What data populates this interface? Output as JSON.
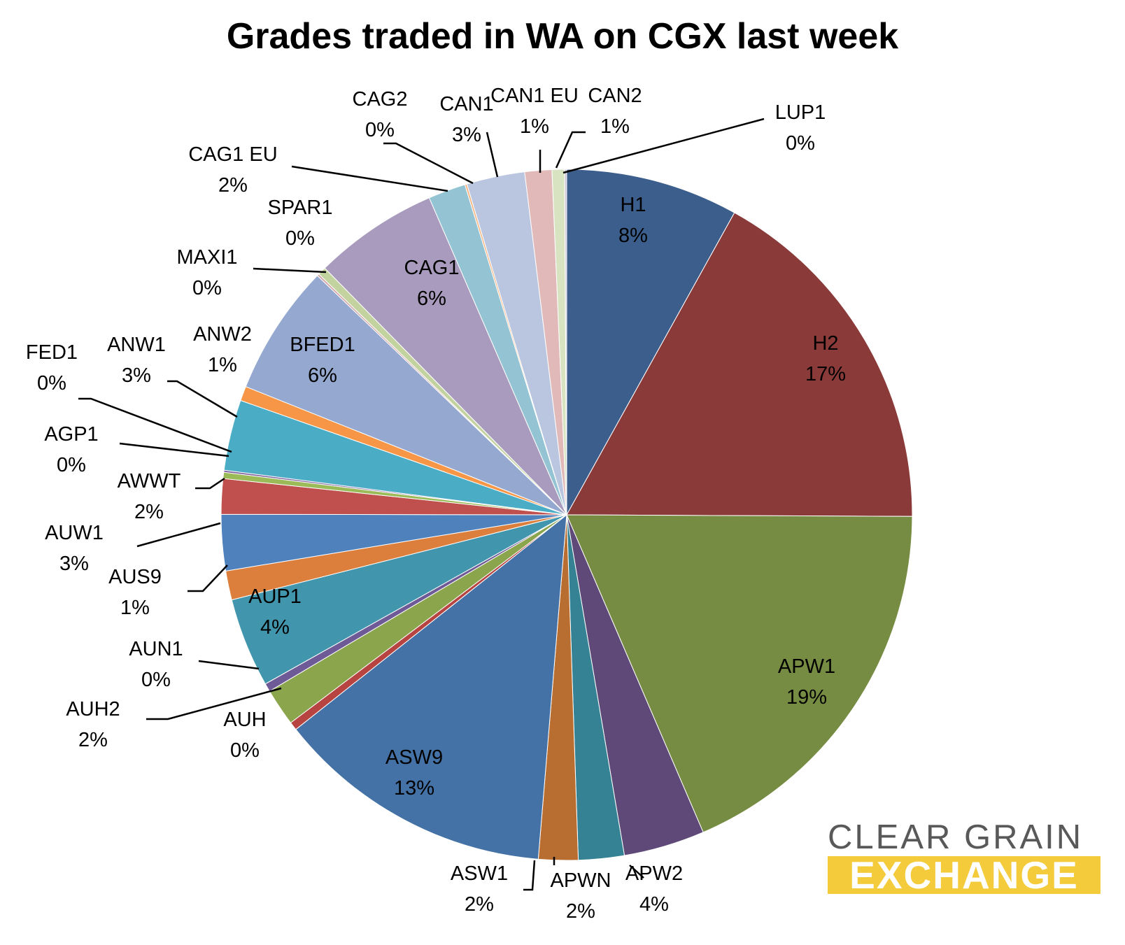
{
  "chart_data": {
    "type": "pie",
    "title": "Grades traded in WA on CGX last week",
    "slices": [
      {
        "name": "H1",
        "label": "8%",
        "value": 8.3,
        "color": "#3b5e8c"
      },
      {
        "name": "H2",
        "label": "17%",
        "value": 17.5,
        "color": "#8b3a3a"
      },
      {
        "name": "APW1",
        "label": "19%",
        "value": 19.0,
        "color": "#768c42"
      },
      {
        "name": "APW2",
        "label": "4%",
        "value": 3.9,
        "color": "#5e4978"
      },
      {
        "name": "APWN",
        "label": "2%",
        "value": 2.2,
        "color": "#358294"
      },
      {
        "name": "ASW1",
        "label": "2%",
        "value": 1.9,
        "color": "#b86e30"
      },
      {
        "name": "ASW9",
        "label": "13%",
        "value": 13.4,
        "color": "#4472a6"
      },
      {
        "name": "AUH",
        "label": "0%",
        "value": 0.4,
        "color": "#b74440"
      },
      {
        "name": "AUH2",
        "label": "2%",
        "value": 1.8,
        "color": "#8aa54c"
      },
      {
        "name": "AUN1",
        "label": "0%",
        "value": 0.4,
        "color": "#6e5a96"
      },
      {
        "name": "AUP1",
        "label": "4%",
        "value": 4.3,
        "color": "#4196ad"
      },
      {
        "name": "AUS9",
        "label": "1%",
        "value": 1.4,
        "color": "#dc7f3c"
      },
      {
        "name": "AUW1",
        "label": "3%",
        "value": 2.7,
        "color": "#4f81bd"
      },
      {
        "name": "AWWT",
        "label": "2%",
        "value": 1.7,
        "color": "#c0504d"
      },
      {
        "name": "AGP1",
        "label": "0%",
        "value": 0.3,
        "color": "#9bbb59"
      },
      {
        "name": "FED1",
        "label": "0%",
        "value": 0.1,
        "color": "#8064a2"
      },
      {
        "name": "ANW1",
        "label": "3%",
        "value": 3.4,
        "color": "#4bacc6"
      },
      {
        "name": "ANW2",
        "label": "1%",
        "value": 0.7,
        "color": "#f79646"
      },
      {
        "name": "BFED1",
        "label": "6%",
        "value": 6.3,
        "color": "#95a9d0"
      },
      {
        "name": "MAXI1",
        "label": "0%",
        "value": 0.1,
        "color": "#d3a8a6"
      },
      {
        "name": "SPAR1",
        "label": "0%",
        "value": 0.4,
        "color": "#c3d3a0"
      },
      {
        "name": "CAG1",
        "label": "6%",
        "value": 6.0,
        "color": "#a99bbd"
      },
      {
        "name": "CAG1 EU",
        "label": "2%",
        "value": 1.8,
        "color": "#94c4d3"
      },
      {
        "name": "CAG2",
        "label": "0%",
        "value": 0.1,
        "color": "#f7b582"
      },
      {
        "name": "CAN1",
        "label": "3%",
        "value": 2.8,
        "color": "#bac6e0"
      },
      {
        "name": "CAN1 EU",
        "label": "1%",
        "value": 1.3,
        "color": "#e0b9b8"
      },
      {
        "name": "CAN2",
        "label": "1%",
        "value": 0.6,
        "color": "#d8e3c2"
      },
      {
        "name": "LUP1",
        "label": "0%",
        "value": 0.1,
        "color": "#cdc4da"
      }
    ]
  },
  "logo": {
    "line1": "CLEAR GRAIN",
    "line2": "EXCHANGE",
    "line2_background": "#f4cb3a"
  }
}
